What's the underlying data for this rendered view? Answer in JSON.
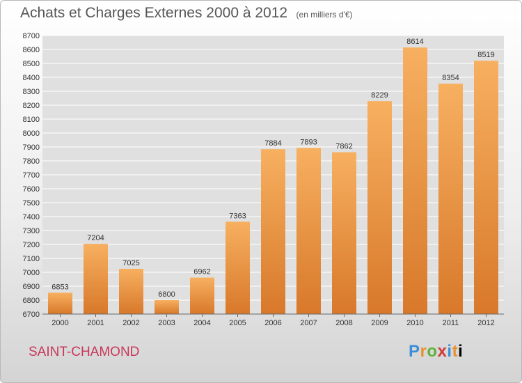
{
  "header": {
    "title": "Achats et Charges Externes 2000 à 2012",
    "unit": "(en milliers d'€)"
  },
  "footer": {
    "city": "SAINT-CHAMOND",
    "brand_letters": [
      "P",
      "r",
      "o",
      "x",
      "i",
      "t",
      "i"
    ]
  },
  "colors": {
    "bar": "#f0953a",
    "bar_light": "#f7b060",
    "bar_dark": "#d8782a",
    "plot_bg": "#e0e0e0",
    "grid": "#ffffff",
    "city": "#c8385a"
  },
  "chart_data": {
    "type": "bar",
    "title": "Achats et Charges Externes 2000 à 2012",
    "subtitle": "(en milliers d'€)",
    "categories": [
      "2000",
      "2001",
      "2002",
      "2003",
      "2004",
      "2005",
      "2006",
      "2007",
      "2008",
      "2009",
      "2010",
      "2011",
      "2012"
    ],
    "values": [
      6853,
      7204,
      7025,
      6800,
      6962,
      7363,
      7884,
      7893,
      7862,
      8229,
      8614,
      8354,
      8519
    ],
    "ylim": [
      6700,
      8700
    ],
    "ytick_step": 100,
    "grid": true,
    "xlabel": "",
    "ylabel": ""
  }
}
